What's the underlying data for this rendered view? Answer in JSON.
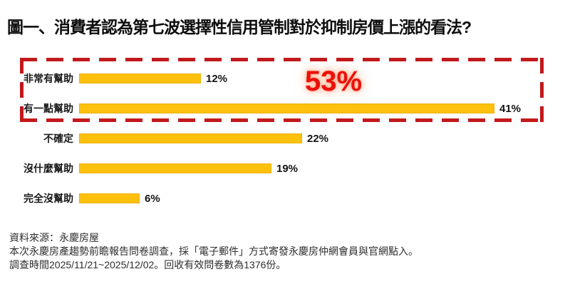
{
  "title": "圖一、消費者認為第七波選擇性信用管制對於抑制房價上漲的看法?",
  "chart_data": {
    "type": "bar",
    "orientation": "horizontal",
    "categories": [
      "非常有幫助",
      "有一點幫助",
      "不確定",
      "沒什麼幫助",
      "完全沒幫助"
    ],
    "values": [
      12,
      41,
      22,
      19,
      6
    ],
    "value_labels": [
      "12%",
      "41%",
      "22%",
      "19%",
      "6%"
    ],
    "unit": "%",
    "xlim": [
      0,
      45
    ],
    "grid": false,
    "bar_color": "#fcc00d",
    "highlight": {
      "text": "53%",
      "color": "#ec100a",
      "box_color": "#c2191c",
      "box_style": "dashed",
      "covers_categories": [
        "非常有幫助",
        "有一點幫助"
      ]
    }
  },
  "footer": {
    "lines": [
      "資料來源：永慶房屋",
      "本次永慶房產趨勢前瞻報告問卷調查，採「電子郵件」方式寄發永慶房仲網會員與官網點入。",
      "調查時間2025/11/21~2025/12/02。回收有效問卷數為1376份。"
    ]
  }
}
